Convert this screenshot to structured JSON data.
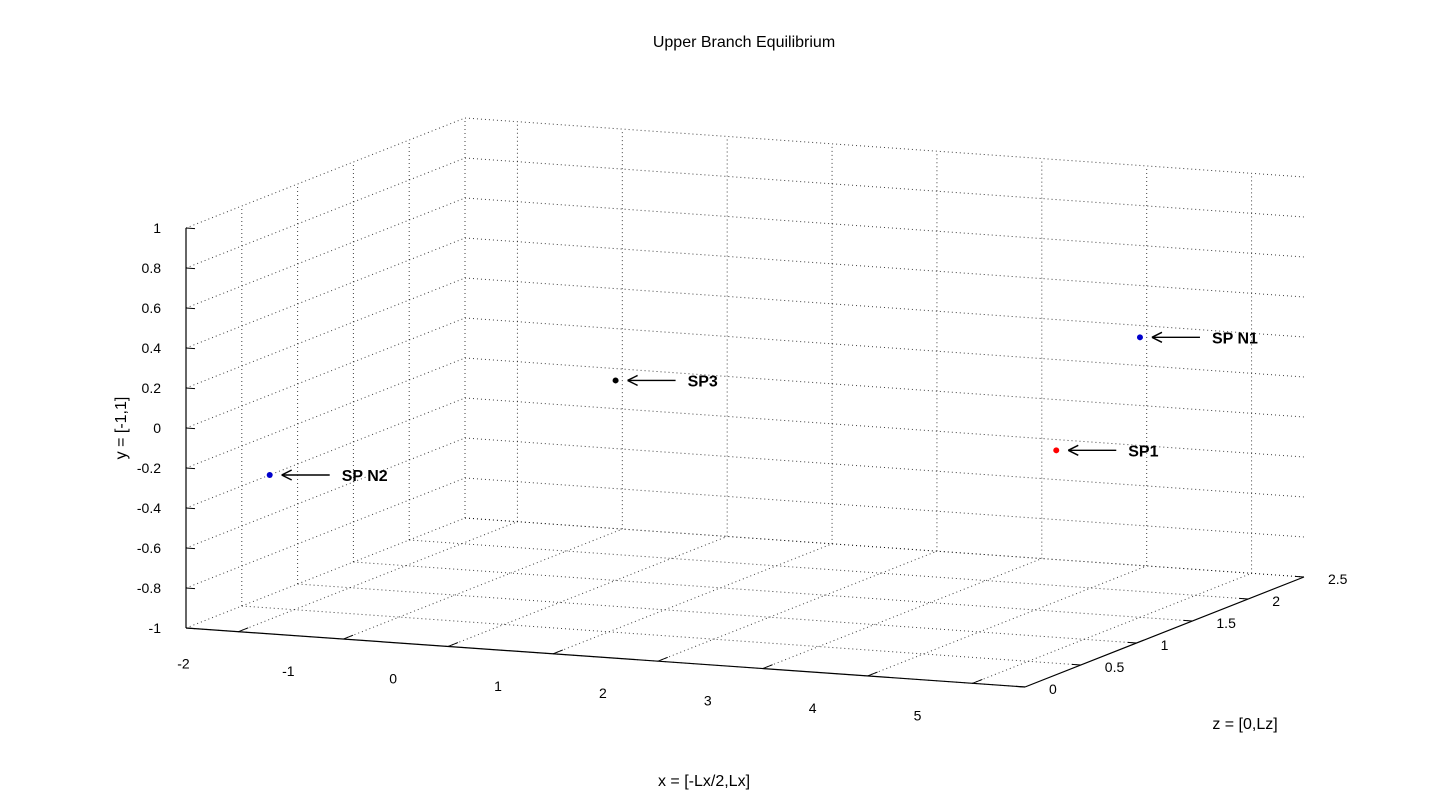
{
  "chart_data": {
    "type": "scatter",
    "title": "Upper Branch Equilibrium",
    "xlabel": "x = [-Lx/2,Lx]",
    "ylabel": "y = [-1,1]",
    "zlabel": "z = [0,Lz]",
    "xlim": [
      -2.5,
      5.5
    ],
    "ylim": [
      -1,
      1
    ],
    "zlim": [
      0,
      2.5
    ],
    "grid": true,
    "x_ticks": [
      "-2",
      "-1",
      "0",
      "1",
      "2",
      "3",
      "4",
      "5"
    ],
    "y_ticks": [
      "-1",
      "-0.8",
      "-0.6",
      "-0.4",
      "-0.2",
      "0",
      "0.2",
      "0.4",
      "0.6",
      "0.8",
      "1"
    ],
    "z_ticks": [
      "0",
      "0.5",
      "1",
      "1.5",
      "2",
      "2.5"
    ],
    "points": [
      {
        "label": "SP N1",
        "x": 5.0,
        "y": 0.4,
        "z": 1.5,
        "color": "#0000cc"
      },
      {
        "label": "SP1",
        "x": 5.0,
        "y": 0.0,
        "z": 0.75,
        "color": "#ff0000"
      },
      {
        "label": "SP3",
        "x": 0.0,
        "y": 0.0,
        "z": 1.5,
        "color": "#000000"
      },
      {
        "label": "SP N2",
        "x": -2.5,
        "y": -0.4,
        "z": 0.75,
        "color": "#0000cc"
      }
    ]
  }
}
